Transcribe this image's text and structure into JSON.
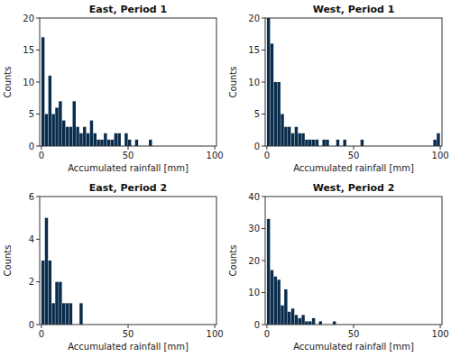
{
  "chart_data": [
    {
      "type": "histogram",
      "title": "East, Period 1",
      "xlabel": "Accumulated rainfall [mm]",
      "ylabel": "Counts",
      "color": "#0a2d4d",
      "bins": [
        0,
        2,
        4,
        6,
        8,
        10,
        12,
        14,
        16,
        18,
        20,
        22,
        24,
        26,
        28,
        30,
        32,
        34,
        36,
        38,
        40,
        42,
        44,
        46,
        48,
        50,
        52,
        54,
        56,
        58,
        60,
        62,
        64,
        66,
        68,
        70,
        72,
        74,
        76,
        78,
        80,
        82,
        84,
        86,
        88,
        90,
        92,
        94,
        96,
        98,
        100
      ],
      "values": [
        17,
        5,
        11,
        5,
        6,
        7,
        4,
        3,
        3,
        7,
        3,
        2,
        3,
        2,
        4,
        2,
        1,
        1,
        2,
        1,
        1,
        2,
        2,
        0,
        2,
        1,
        0,
        1,
        0,
        0,
        0,
        1,
        0,
        0,
        0,
        0,
        0,
        0,
        0,
        0,
        0,
        0,
        0,
        0,
        0,
        0,
        0,
        0,
        0,
        0
      ],
      "xlim": [
        -1,
        101
      ],
      "xticks": [
        0,
        50,
        100
      ],
      "ylim": [
        0,
        20
      ],
      "yticks": [
        0,
        5,
        10,
        15,
        20
      ]
    },
    {
      "type": "histogram",
      "title": "West, Period 1",
      "xlabel": "Accumulated rainfall [mm]",
      "ylabel": "Counts",
      "color": "#0a2d4d",
      "bins": [
        0,
        2,
        4,
        6,
        8,
        10,
        12,
        14,
        16,
        18,
        20,
        22,
        24,
        26,
        28,
        30,
        32,
        34,
        36,
        38,
        40,
        42,
        44,
        46,
        48,
        50,
        52,
        54,
        56,
        58,
        60,
        62,
        64,
        66,
        68,
        70,
        72,
        74,
        76,
        78,
        80,
        82,
        84,
        86,
        88,
        90,
        92,
        94,
        96,
        98,
        100
      ],
      "values": [
        20,
        16,
        10,
        10,
        5,
        3,
        3,
        2,
        3,
        2,
        2,
        1,
        1,
        1,
        1,
        0,
        1,
        1,
        0,
        0,
        1,
        0,
        1,
        0,
        0,
        0,
        0,
        1,
        0,
        0,
        0,
        0,
        0,
        0,
        0,
        0,
        0,
        0,
        0,
        0,
        0,
        0,
        0,
        0,
        0,
        0,
        0,
        0,
        1,
        2
      ],
      "xlim": [
        -1,
        101
      ],
      "xticks": [
        0,
        50,
        100
      ],
      "ylim": [
        0,
        20
      ],
      "yticks": [
        0,
        5,
        10,
        15,
        20
      ]
    },
    {
      "type": "histogram",
      "title": "East, Period 2",
      "xlabel": "Accumulated rainfall [mm]",
      "ylabel": "Counts",
      "color": "#0a2d4d",
      "bins": [
        0,
        2,
        4,
        6,
        8,
        10,
        12,
        14,
        16,
        18,
        20,
        22,
        24,
        26,
        28,
        30,
        32,
        34,
        36,
        38,
        40,
        42,
        44,
        46,
        48,
        50,
        52,
        54,
        56,
        58,
        60,
        62,
        64,
        66,
        68,
        70,
        72,
        74,
        76,
        78,
        80,
        82,
        84,
        86,
        88,
        90,
        92,
        94,
        96,
        98,
        100
      ],
      "values": [
        3,
        5,
        3,
        1,
        2,
        2,
        1,
        1,
        1,
        0,
        0,
        1,
        0,
        0,
        0,
        0,
        0,
        0,
        0,
        0,
        0,
        0,
        0,
        0,
        0,
        0,
        0,
        0,
        0,
        0,
        0,
        0,
        0,
        0,
        0,
        0,
        0,
        0,
        0,
        0,
        0,
        0,
        0,
        0,
        0,
        0,
        0,
        0,
        0,
        0
      ],
      "xlim": [
        -1,
        101
      ],
      "xticks": [
        0,
        50,
        100
      ],
      "ylim": [
        0,
        6
      ],
      "yticks": [
        0,
        2,
        4,
        6
      ]
    },
    {
      "type": "histogram",
      "title": "West, Period 2",
      "xlabel": "Accumulated rainfall [mm]",
      "ylabel": "Counts",
      "color": "#0a2d4d",
      "bins": [
        0,
        2,
        4,
        6,
        8,
        10,
        12,
        14,
        16,
        18,
        20,
        22,
        24,
        26,
        28,
        30,
        32,
        34,
        36,
        38,
        40,
        42,
        44,
        46,
        48,
        50,
        52,
        54,
        56,
        58,
        60,
        62,
        64,
        66,
        68,
        70,
        72,
        74,
        76,
        78,
        80,
        82,
        84,
        86,
        88,
        90,
        92,
        94,
        96,
        98,
        100
      ],
      "values": [
        33,
        17,
        15,
        14,
        6,
        11,
        4,
        5,
        3,
        2,
        3,
        1,
        1,
        2,
        0,
        1,
        0,
        0,
        0,
        1,
        0,
        0,
        0,
        0,
        0,
        0,
        0,
        0,
        0,
        0,
        0,
        0,
        0,
        0,
        0,
        0,
        0,
        0,
        0,
        0,
        0,
        0,
        0,
        0,
        0,
        0,
        0,
        0,
        0,
        0
      ],
      "xlim": [
        -1,
        101
      ],
      "xticks": [
        0,
        50,
        100
      ],
      "ylim": [
        0,
        40
      ],
      "yticks": [
        0,
        10,
        20,
        30,
        40
      ]
    }
  ]
}
